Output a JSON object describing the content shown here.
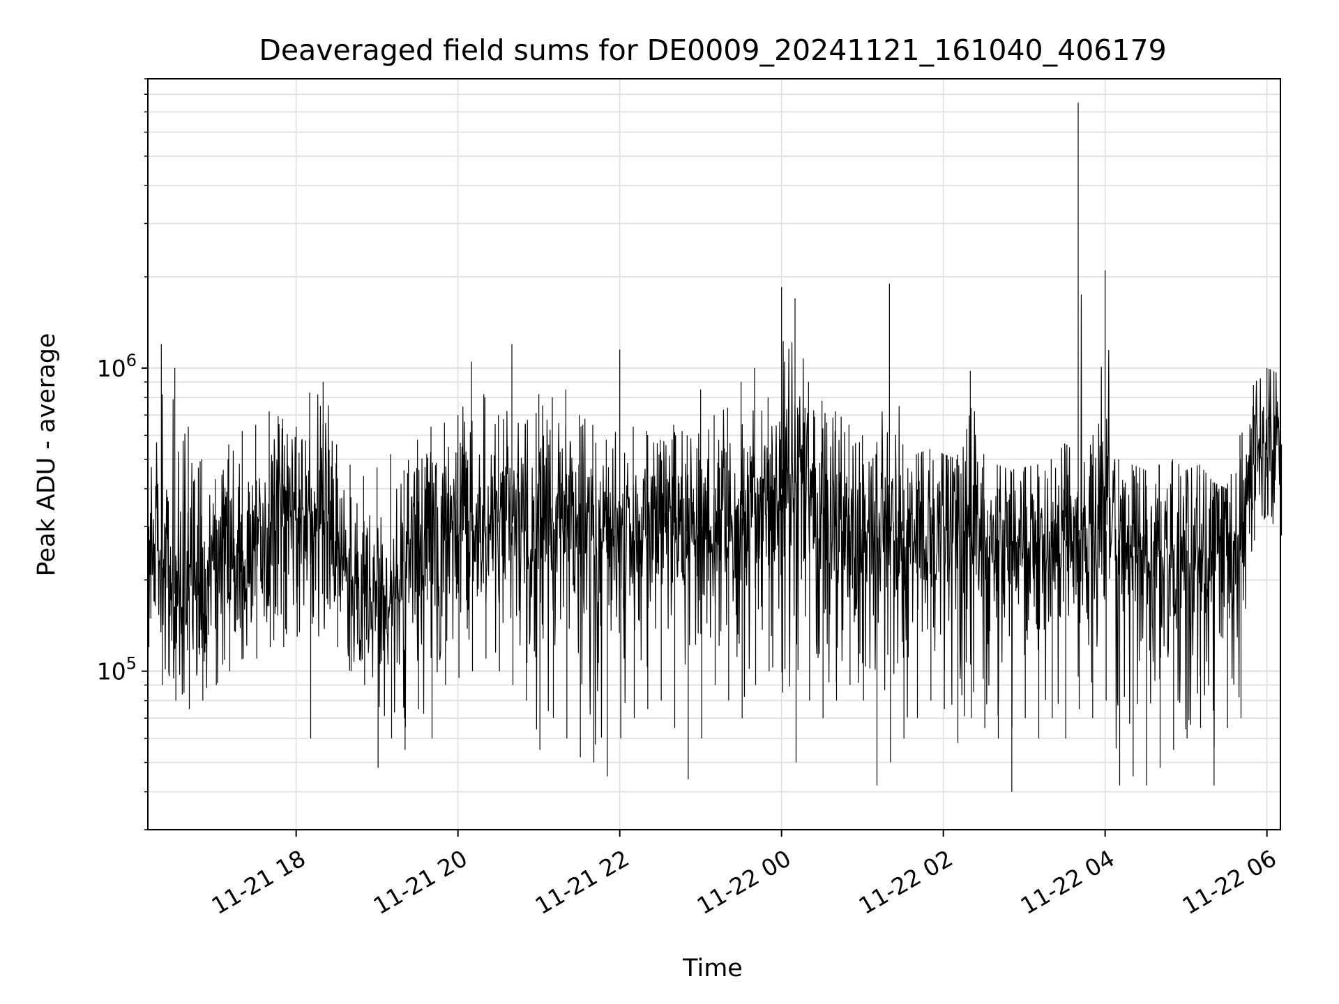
{
  "chart_data": {
    "type": "line",
    "title": "Deaveraged field sums for DE0009_20241121_161040_406179",
    "xlabel": "Time",
    "ylabel": "Peak ADU - average",
    "yscale": "log",
    "xlim": [
      "2024-11-21 16:10",
      "2024-11-22 06:10"
    ],
    "ylim": [
      30000,
      9000000
    ],
    "grid": true,
    "line_color": "#000000",
    "x_ticks": [
      {
        "value": "2024-11-21 18:00",
        "label": "11-21 18"
      },
      {
        "value": "2024-11-21 20:00",
        "label": "11-21 20"
      },
      {
        "value": "2024-11-21 22:00",
        "label": "11-21 22"
      },
      {
        "value": "2024-11-22 00:00",
        "label": "11-22 00"
      },
      {
        "value": "2024-11-22 02:00",
        "label": "11-22 02"
      },
      {
        "value": "2024-11-22 04:00",
        "label": "11-22 04"
      },
      {
        "value": "2024-11-22 06:00",
        "label": "11-22 06"
      }
    ],
    "y_ticks": [
      {
        "value": 100000,
        "base": "10",
        "exp": "5"
      },
      {
        "value": 1000000,
        "base": "10",
        "exp": "6"
      }
    ],
    "series": [
      {
        "x": [
          "2024-11-21 16:10",
          "2024-11-21 16:20",
          "2024-11-21 16:30",
          "2024-11-21 16:40",
          "2024-11-21 16:50",
          "2024-11-21 17:00",
          "2024-11-21 17:10",
          "2024-11-21 17:20",
          "2024-11-21 17:30",
          "2024-11-21 17:40",
          "2024-11-21 17:50",
          "2024-11-21 18:00",
          "2024-11-21 18:10",
          "2024-11-21 18:20",
          "2024-11-21 18:30",
          "2024-11-21 18:40",
          "2024-11-21 18:50",
          "2024-11-21 19:00",
          "2024-11-21 19:10",
          "2024-11-21 19:20",
          "2024-11-21 19:30",
          "2024-11-21 19:40",
          "2024-11-21 19:50",
          "2024-11-21 20:00",
          "2024-11-21 20:10",
          "2024-11-21 20:20",
          "2024-11-21 20:30",
          "2024-11-21 20:40",
          "2024-11-21 20:50",
          "2024-11-21 21:00",
          "2024-11-21 21:10",
          "2024-11-21 21:20",
          "2024-11-21 21:30",
          "2024-11-21 21:40",
          "2024-11-21 21:50",
          "2024-11-21 22:00",
          "2024-11-21 22:10",
          "2024-11-21 22:20",
          "2024-11-21 22:30",
          "2024-11-21 22:40",
          "2024-11-21 22:50",
          "2024-11-21 23:00",
          "2024-11-21 23:10",
          "2024-11-21 23:20",
          "2024-11-21 23:30",
          "2024-11-21 23:40",
          "2024-11-21 23:50",
          "2024-11-22 00:00",
          "2024-11-22 00:10",
          "2024-11-22 00:20",
          "2024-11-22 00:30",
          "2024-11-22 00:40",
          "2024-11-22 00:50",
          "2024-11-22 01:00",
          "2024-11-22 01:10",
          "2024-11-22 01:20",
          "2024-11-22 01:30",
          "2024-11-22 01:40",
          "2024-11-22 01:50",
          "2024-11-22 02:00",
          "2024-11-22 02:10",
          "2024-11-22 02:20",
          "2024-11-22 02:30",
          "2024-11-22 02:40",
          "2024-11-22 02:50",
          "2024-11-22 03:00",
          "2024-11-22 03:10",
          "2024-11-22 03:20",
          "2024-11-22 03:30",
          "2024-11-22 03:40",
          "2024-11-22 03:50",
          "2024-11-22 04:00",
          "2024-11-22 04:10",
          "2024-11-22 04:20",
          "2024-11-22 04:30",
          "2024-11-22 04:40",
          "2024-11-22 04:50",
          "2024-11-22 05:00",
          "2024-11-22 05:10",
          "2024-11-22 05:20",
          "2024-11-22 05:30",
          "2024-11-22 05:40",
          "2024-11-22 05:50",
          "2024-11-22 06:00",
          "2024-11-22 06:10"
        ],
        "y_high": [
          800000,
          1200000,
          1000000,
          640000,
          500000,
          430000,
          560000,
          620000,
          650000,
          720000,
          680000,
          640000,
          830000,
          900000,
          560000,
          480000,
          440000,
          470000,
          520000,
          460000,
          580000,
          640000,
          660000,
          700000,
          1050000,
          800000,
          700000,
          1200000,
          650000,
          820000,
          800000,
          850000,
          700000,
          650000,
          580000,
          1150000,
          640000,
          620000,
          580000,
          650000,
          600000,
          850000,
          700000,
          740000,
          900000,
          1000000,
          800000,
          1850000,
          1700000,
          900000,
          780000,
          720000,
          650000,
          600000,
          520000,
          1900000,
          560000,
          520000,
          540000,
          520000,
          500000,
          980000,
          520000,
          480000,
          460000,
          470000,
          480000,
          500000,
          560000,
          7500000,
          520000,
          2100000,
          500000,
          480000,
          460000,
          480000,
          500000,
          460000,
          480000,
          420000,
          400000,
          600000,
          880000,
          1000000,
          950000
        ],
        "y_typical": [
          300000,
          220000,
          180000,
          190000,
          200000,
          210000,
          220000,
          230000,
          260000,
          280000,
          300000,
          320000,
          330000,
          310000,
          290000,
          200000,
          180000,
          190000,
          200000,
          230000,
          250000,
          260000,
          270000,
          280000,
          290000,
          300000,
          310000,
          300000,
          290000,
          300000,
          310000,
          300000,
          290000,
          280000,
          270000,
          260000,
          270000,
          280000,
          290000,
          280000,
          290000,
          300000,
          310000,
          300000,
          320000,
          330000,
          340000,
          400000,
          420000,
          380000,
          330000,
          300000,
          290000,
          290000,
          300000,
          300000,
          290000,
          280000,
          290000,
          300000,
          290000,
          280000,
          270000,
          270000,
          260000,
          250000,
          250000,
          260000,
          270000,
          280000,
          280000,
          290000,
          260000,
          240000,
          240000,
          250000,
          250000,
          250000,
          250000,
          240000,
          240000,
          250000,
          480000,
          540000,
          560000
        ],
        "y_low": [
          120000,
          90000,
          80000,
          75000,
          80000,
          90000,
          100000,
          110000,
          110000,
          120000,
          120000,
          130000,
          60000,
          140000,
          120000,
          100000,
          90000,
          48000,
          60000,
          55000,
          75000,
          60000,
          90000,
          95000,
          100000,
          110000,
          100000,
          90000,
          80000,
          55000,
          70000,
          60000,
          52000,
          50000,
          45000,
          60000,
          70000,
          75000,
          80000,
          65000,
          44000,
          60000,
          90000,
          80000,
          70000,
          90000,
          100000,
          85000,
          50000,
          80000,
          70000,
          80000,
          90000,
          80000,
          42000,
          50000,
          60000,
          70000,
          80000,
          75000,
          58000,
          70000,
          65000,
          60000,
          40000,
          70000,
          60000,
          70000,
          60000,
          75000,
          70000,
          80000,
          42000,
          45000,
          42000,
          48000,
          55000,
          60000,
          65000,
          42000,
          65000,
          70000,
          270000,
          330000,
          280000
        ]
      }
    ]
  }
}
